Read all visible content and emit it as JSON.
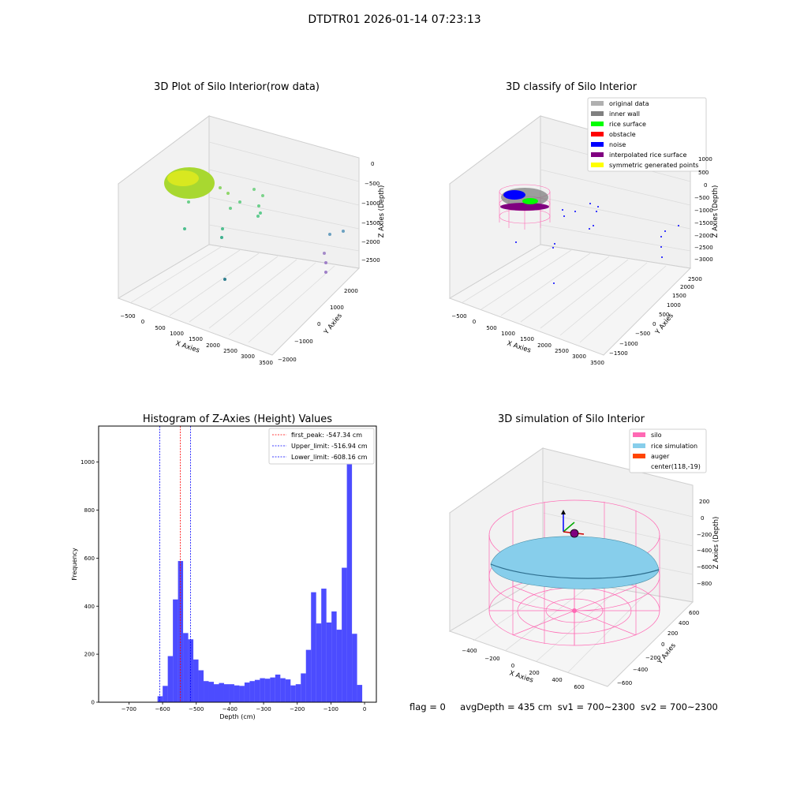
{
  "suptitle": "DTDTR01 2026-01-14 07:23:13",
  "status": {
    "flag": "flag = 0",
    "avg_depth": "avgDepth = 435 cm",
    "sv1": "sv1 = 700~2300",
    "sv2": "sv2 = 700~2300"
  },
  "plot1": {
    "title": "3D Plot of Silo Interior(row data)",
    "xlabel": "X Axies",
    "ylabel": "Y Axies",
    "zlabel": "Z Axies (Depth)",
    "xticks": [
      "−500",
      "0",
      "500",
      "1000",
      "1500",
      "2000",
      "2500",
      "3000",
      "3500"
    ],
    "yticks": [
      "−2000",
      "−1000",
      "0",
      "1000",
      "2000"
    ],
    "zticks": [
      "0",
      "−500",
      "−1000",
      "−1500",
      "−2000",
      "−2500"
    ]
  },
  "plot2": {
    "title": "3D classify of Silo Interior",
    "xlabel": "X Axies",
    "ylabel": "Y Axies",
    "zlabel": "Z Axies (Depth)",
    "xticks": [
      "−500",
      "0",
      "500",
      "1000",
      "1500",
      "2000",
      "2500",
      "3000",
      "3500"
    ],
    "yticks": [
      "−1500",
      "−1000",
      "−500",
      "0",
      "500",
      "1000",
      "1500",
      "2000",
      "2500"
    ],
    "zticks": [
      "1000",
      "500",
      "0",
      "−500",
      "−1000",
      "−1500",
      "−2000",
      "−2500",
      "−3000"
    ],
    "legend": [
      {
        "label": "original data",
        "color": "#b0b0b0"
      },
      {
        "label": "inner wall",
        "color": "#808080"
      },
      {
        "label": "rice surface",
        "color": "#00ff00"
      },
      {
        "label": "obstacle",
        "color": "#ff0000"
      },
      {
        "label": "noise",
        "color": "#0000ff"
      },
      {
        "label": "interpolated rice surface",
        "color": "#800080"
      },
      {
        "label": "symmetric generated points",
        "color": "#ffff00"
      }
    ]
  },
  "plot4": {
    "title": "3D simulation of Silo Interior",
    "xlabel": "X Axies",
    "ylabel": "Y Axies",
    "zlabel": "Z Axies (Depth)",
    "xticks": [
      "−400",
      "−200",
      "0",
      "200",
      "400",
      "600"
    ],
    "yticks": [
      "−600",
      "−400",
      "−200",
      "0",
      "200",
      "400",
      "600"
    ],
    "zticks": [
      "200",
      "0",
      "−200",
      "−400",
      "−600",
      "−800"
    ],
    "legend": [
      {
        "label": "silo",
        "color": "#ff69b4"
      },
      {
        "label": "rice simulation",
        "color": "#87ceeb"
      },
      {
        "label": "auger",
        "color": "#ff4500"
      },
      {
        "label": "center(118,-19)",
        "color": ""
      }
    ]
  },
  "chart_data": {
    "type": "bar",
    "title": "Histogram of Z-Axies (Height) Values",
    "xlabel": "Depth (cm)",
    "ylabel": "Frequency",
    "xlim": [
      -790,
      35
    ],
    "ylim": [
      0,
      1150
    ],
    "xticks": [
      -700,
      -600,
      -500,
      -400,
      -300,
      -200,
      -100,
      0
    ],
    "yticks": [
      0,
      200,
      400,
      600,
      800,
      1000
    ],
    "bin_width": 15.2,
    "bins_start": [
      -615,
      -599.8,
      -584.6,
      -569.4,
      -554.2,
      -539.0,
      -523.8,
      -508.6,
      -493.4,
      -478.2,
      -463.0,
      -447.8,
      -432.6,
      -417.4,
      -402.2,
      -387.0,
      -371.8,
      -356.6,
      -341.4,
      -326.2,
      -311.0,
      -295.8,
      -280.6,
      -265.4,
      -250.2,
      -235.0,
      -219.8,
      -204.6,
      -189.4,
      -174.2,
      -159.0,
      -143.8,
      -128.6,
      -113.4,
      -98.2,
      -83.0,
      -67.8,
      -52.6,
      -37.4,
      -22.2,
      -7.0
    ],
    "values": [
      25,
      68,
      192,
      428,
      588,
      288,
      262,
      178,
      133,
      88,
      85,
      75,
      80,
      75,
      75,
      70,
      68,
      82,
      88,
      93,
      100,
      98,
      103,
      115,
      100,
      95,
      70,
      75,
      120,
      218,
      458,
      328,
      473,
      332,
      378,
      302,
      560,
      1085,
      285,
      72,
      0
    ],
    "bar_color": "#0000ff",
    "bar_alpha": 0.7,
    "vlines": [
      {
        "label": "first_peak: -547.34 cm",
        "x": -547.34,
        "color": "#ff0000"
      },
      {
        "label": "Upper_limit: -516.94 cm",
        "x": -516.94,
        "color": "#0000ff"
      },
      {
        "label": "Lower_limit: -608.16 cm",
        "x": -608.16,
        "color": "#0000ff"
      }
    ],
    "legend_position": "top-right",
    "grid": false
  }
}
